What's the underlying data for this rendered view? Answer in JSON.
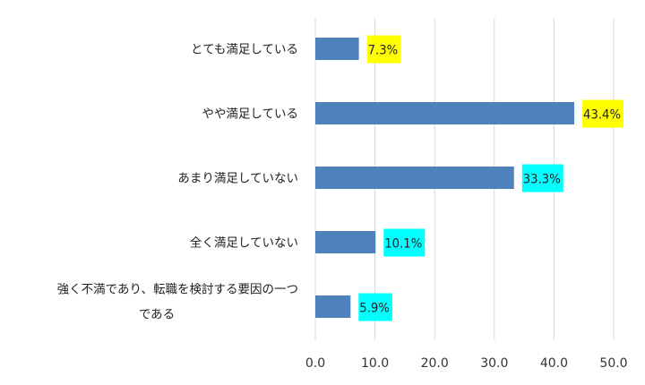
{
  "chart_data": {
    "type": "bar",
    "orientation": "horizontal",
    "categories": [
      [
        "とても満足している"
      ],
      [
        "やや満足している"
      ],
      [
        "あまり満足していない"
      ],
      [
        "全く満足していない"
      ],
      [
        "強く不満であり、転職を検討する要因の一つ",
        "である"
      ]
    ],
    "values": [
      7.3,
      43.4,
      33.3,
      10.1,
      5.9
    ],
    "data_labels": [
      "7.3%",
      "43.4%",
      "33.3%",
      "10.1%",
      "5.9%"
    ],
    "label_highlight_colors": [
      "#ffff00",
      "#ffff00",
      "#00ffff",
      "#00ffff",
      "#00ffff"
    ],
    "bar_color": "#4f81bd",
    "xlim": [
      0,
      50
    ],
    "x_ticks": [
      "0.0",
      "10.0",
      "20.0",
      "30.0",
      "40.0",
      "50.0"
    ],
    "grid": true,
    "title": "",
    "xlabel": "",
    "ylabel": ""
  }
}
